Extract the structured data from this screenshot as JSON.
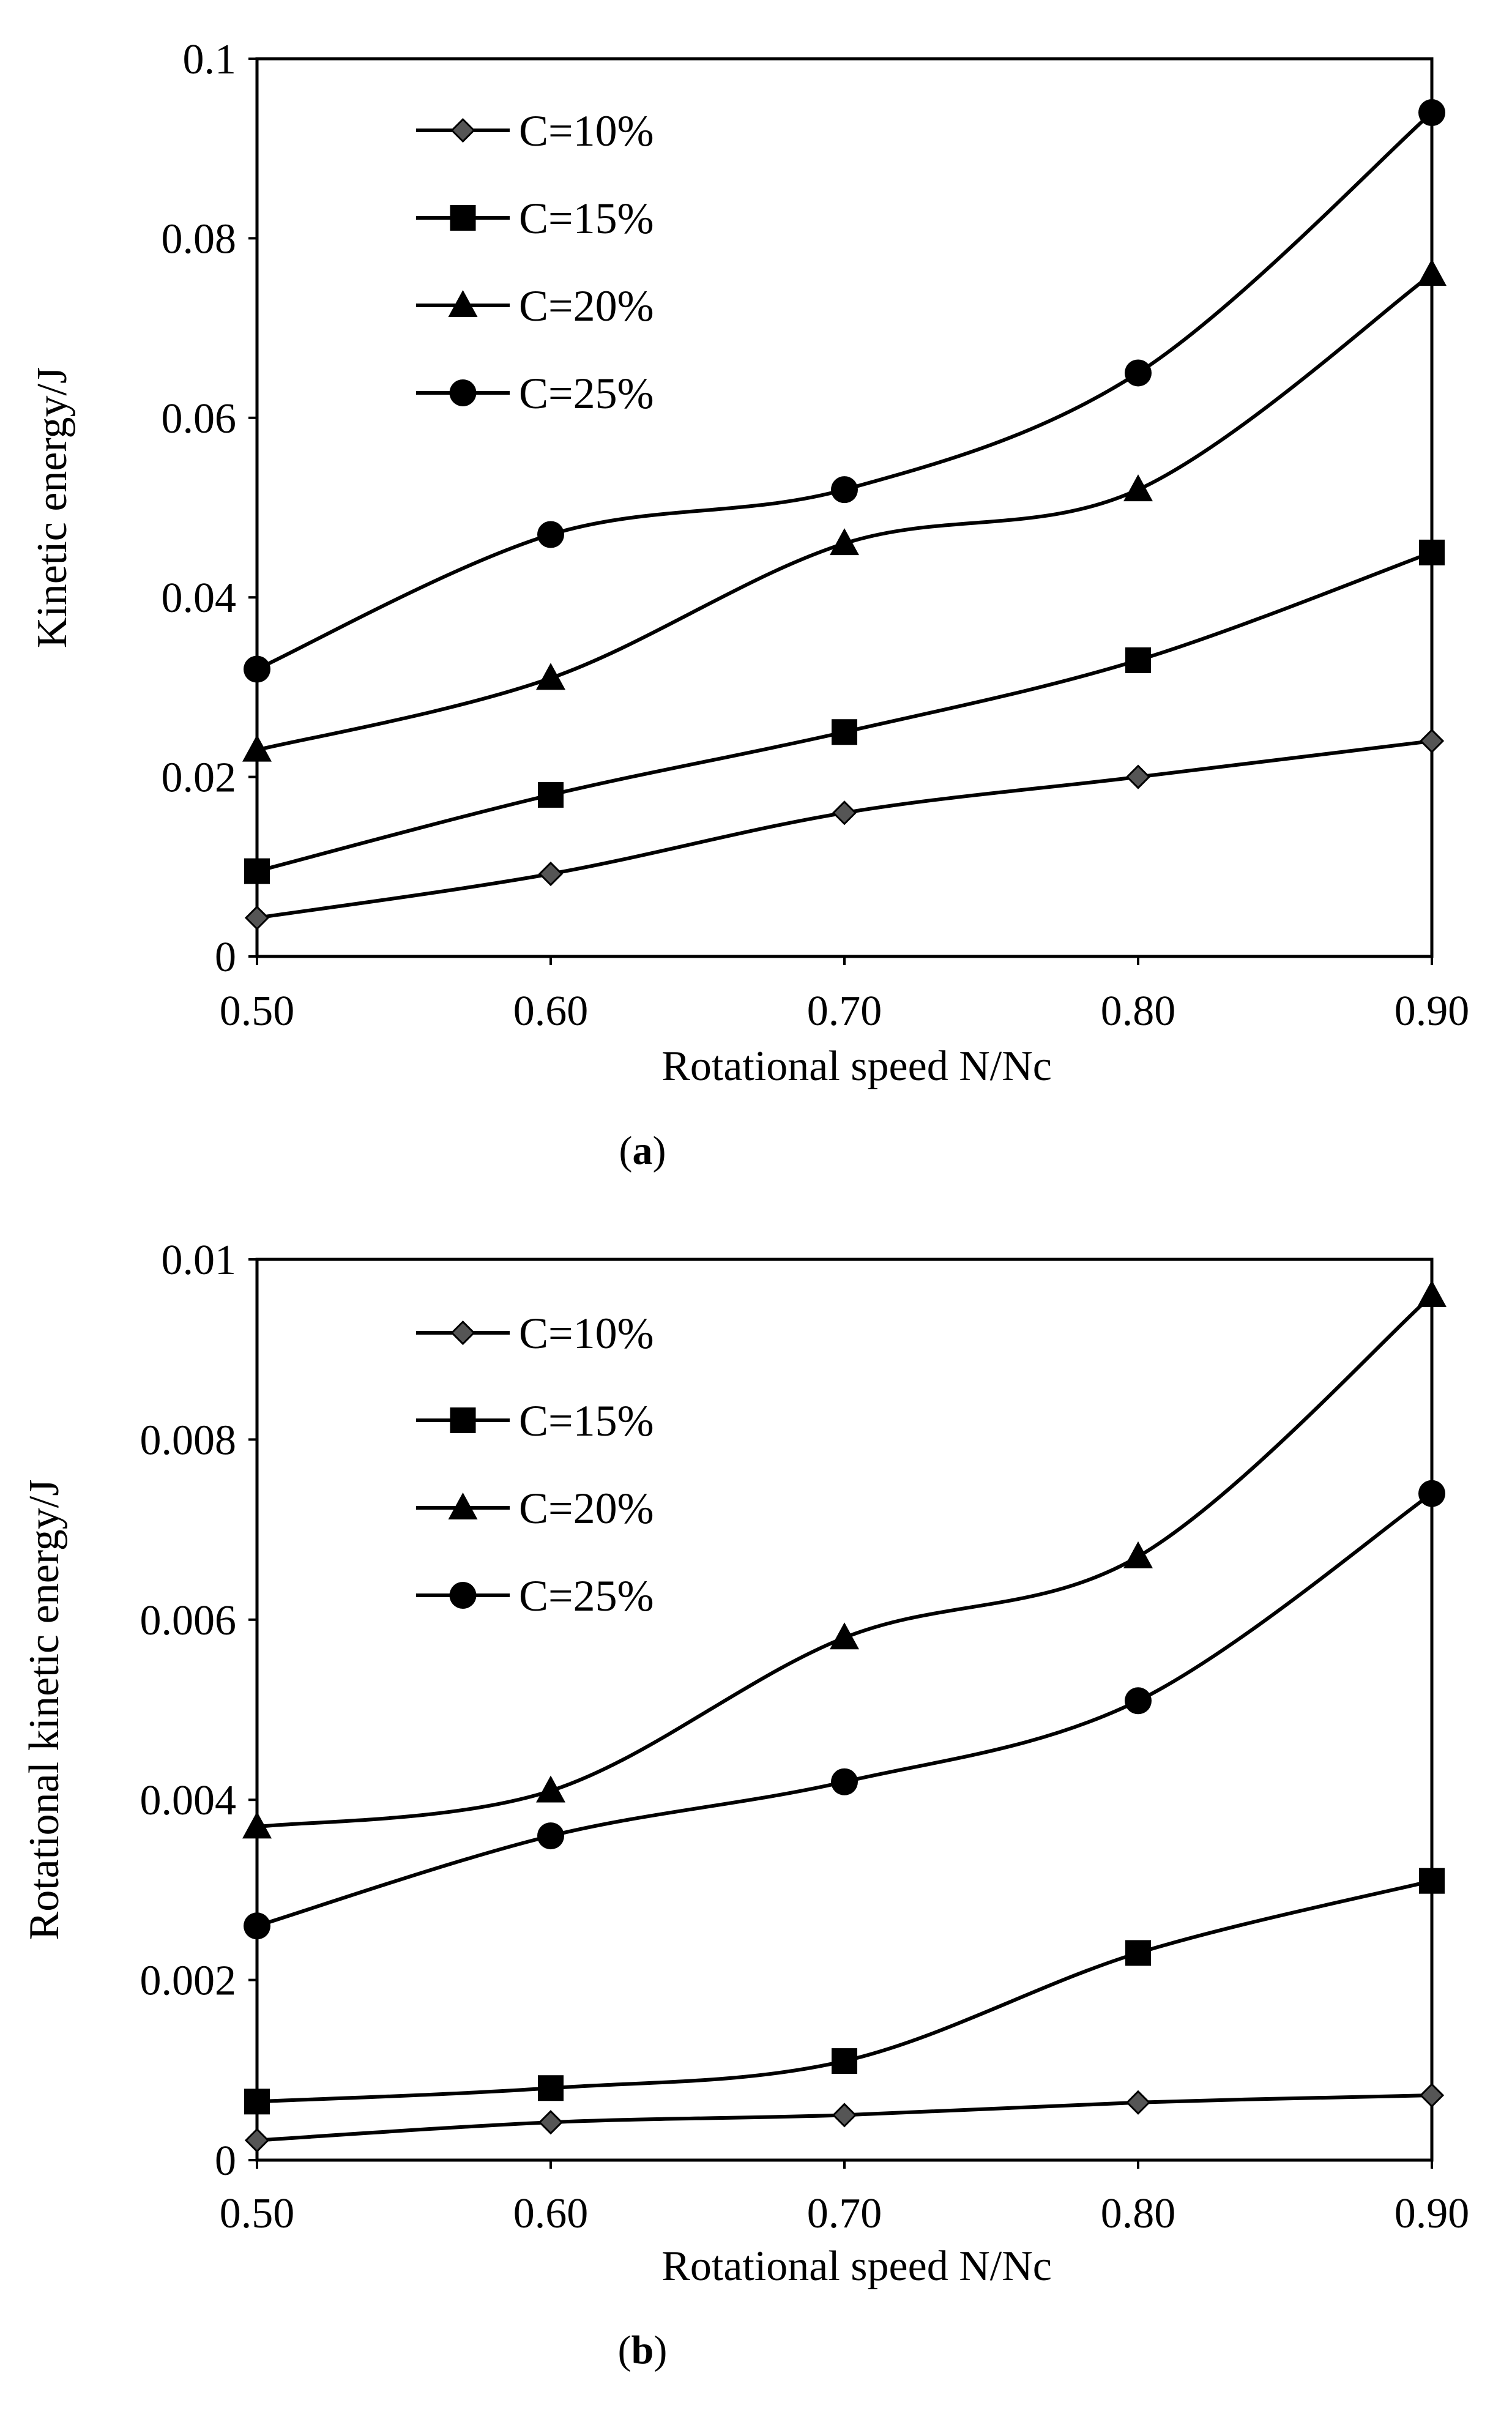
{
  "chart_data": [
    {
      "type": "line",
      "panel_label": "a",
      "title": "",
      "xlabel": "Rotational speed  N/Nc",
      "ylabel": "Kinetic energy/J",
      "x": [
        0.5,
        0.6,
        0.7,
        0.8,
        0.9
      ],
      "x_tick_labels": [
        "0.50",
        "0.60",
        "0.70",
        "0.80",
        "0.90"
      ],
      "xlim": [
        0.5,
        0.9
      ],
      "ylim": [
        0,
        0.1
      ],
      "y_ticks": [
        0,
        0.02,
        0.04,
        0.06,
        0.08,
        0.1
      ],
      "y_tick_labels": [
        "0",
        "0.02",
        "0.04",
        "0.06",
        "0.08",
        "0.1"
      ],
      "grid": false,
      "legend_position": "top-left",
      "series": [
        {
          "name": "C=10%",
          "marker": "diamond",
          "values": [
            0.0043,
            0.0092,
            0.016,
            0.02,
            0.024
          ]
        },
        {
          "name": "C=15%",
          "marker": "square",
          "values": [
            0.0095,
            0.018,
            0.025,
            0.033,
            0.045
          ]
        },
        {
          "name": "C=20%",
          "marker": "triangle",
          "values": [
            0.023,
            0.031,
            0.046,
            0.052,
            0.076
          ]
        },
        {
          "name": "C=25%",
          "marker": "circle",
          "values": [
            0.032,
            0.047,
            0.052,
            0.065,
            0.094
          ]
        }
      ]
    },
    {
      "type": "line",
      "panel_label": "b",
      "title": "",
      "xlabel": "Rotational speed  N/Nc",
      "ylabel": "Rotational kinetic energy/J",
      "x": [
        0.5,
        0.6,
        0.7,
        0.8,
        0.9
      ],
      "x_tick_labels": [
        "0.50",
        "0.60",
        "0.70",
        "0.80",
        "0.90"
      ],
      "xlim": [
        0.5,
        0.9
      ],
      "ylim": [
        0,
        0.01
      ],
      "y_ticks": [
        0,
        0.002,
        0.004,
        0.006,
        0.008,
        0.01
      ],
      "y_tick_labels": [
        "0",
        "0.002",
        "0.004",
        "0.006",
        "0.008",
        "0.01"
      ],
      "grid": false,
      "legend_position": "top-left",
      "series": [
        {
          "name": "C=10%",
          "marker": "diamond",
          "values": [
            0.00022,
            0.00042,
            0.0005,
            0.00064,
            0.00072
          ]
        },
        {
          "name": "C=15%",
          "marker": "square",
          "values": [
            0.00065,
            0.0008,
            0.0011,
            0.0023,
            0.0031
          ]
        },
        {
          "name": "C=20%",
          "marker": "triangle",
          "values": [
            0.0037,
            0.0041,
            0.0058,
            0.0067,
            0.0096
          ]
        },
        {
          "name": "C=25%",
          "marker": "circle",
          "values": [
            0.0026,
            0.0036,
            0.0042,
            0.0051,
            0.0074
          ]
        }
      ]
    }
  ]
}
